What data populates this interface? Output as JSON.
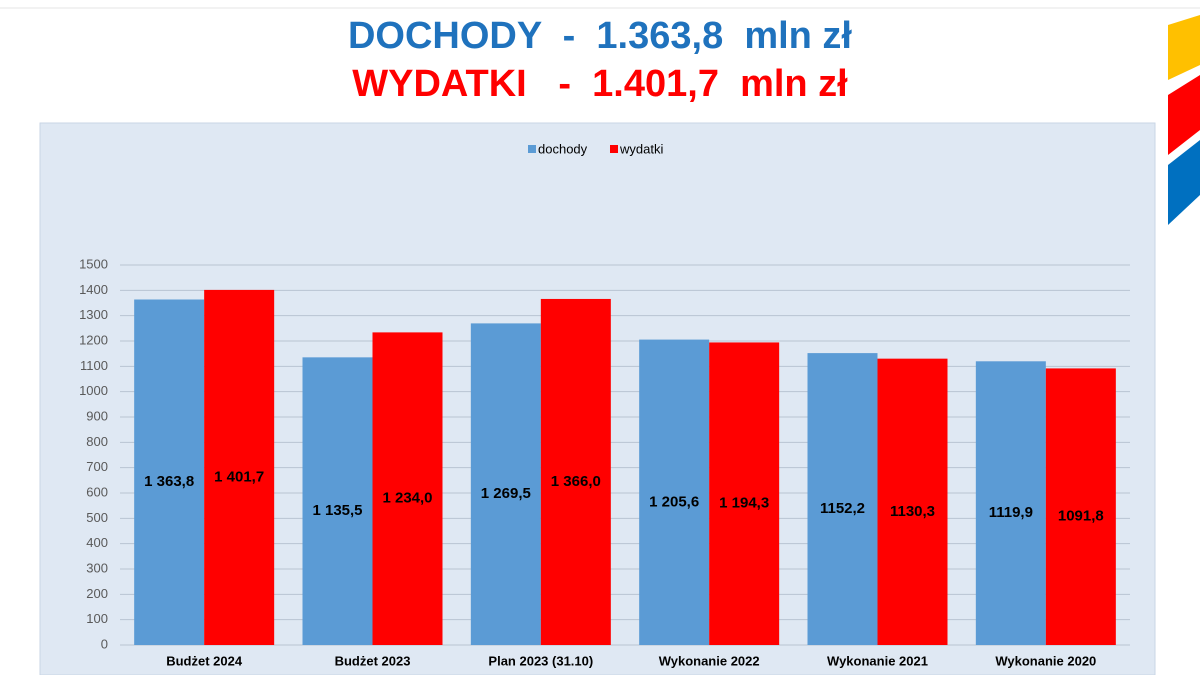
{
  "chart_data": {
    "type": "bar",
    "title": "DOCHODY  -  1.363,8  mln zł",
    "title_color": "#1f72bd",
    "subtitle": "WYDATKI   -  1.401,7  mln zł",
    "subtitle_color": "#ff0000",
    "categories": [
      "Budżet 2024",
      "Budżet 2023",
      "Plan 2023 (31.10)",
      "Wykonanie 2022",
      "Wykonanie 2021",
      "Wykonanie 2020"
    ],
    "series": [
      {
        "name": "dochody",
        "color": "#5b9bd5",
        "values": [
          1363.8,
          1135.5,
          1269.5,
          1205.6,
          1152.2,
          1119.9
        ],
        "value_labels": [
          "1 363,8",
          "1 135,5",
          "1 269,5",
          "1 205,6",
          "1152,2",
          "1119,9"
        ]
      },
      {
        "name": "wydatki",
        "color": "#ff0000",
        "values": [
          1401.7,
          1234.0,
          1366.0,
          1194.3,
          1130.3,
          1091.8
        ],
        "value_labels": [
          "1 401,7",
          "1 234,0",
          "1 366,0",
          "1 194,3",
          "1130,3",
          "1091,8"
        ]
      }
    ],
    "ylim": [
      0,
      1500
    ],
    "yticks": [
      0,
      100,
      200,
      300,
      400,
      500,
      600,
      700,
      800,
      900,
      1000,
      1100,
      1200,
      1300,
      1400,
      1500
    ],
    "grid": true,
    "legend": "top"
  }
}
